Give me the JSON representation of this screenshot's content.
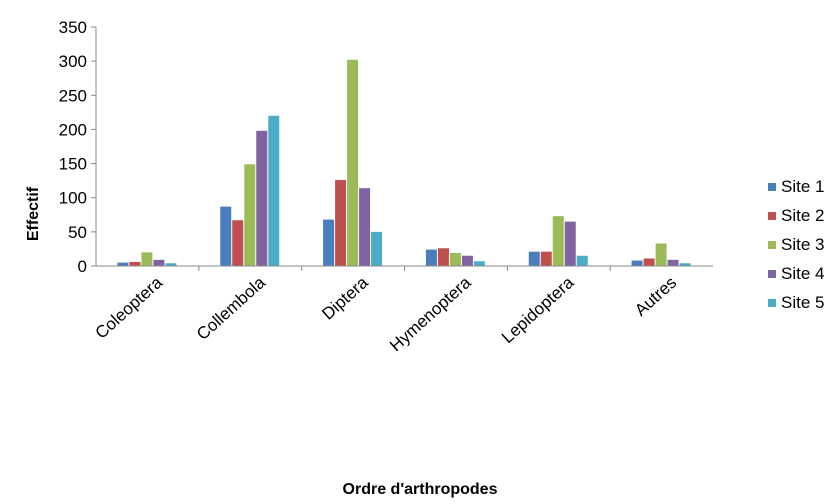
{
  "chart_data": {
    "type": "bar",
    "xlabel": "Ordre d'arthropodes",
    "ylabel": "Effectif",
    "ylim": [
      0,
      350
    ],
    "yticks": [
      0,
      50,
      100,
      150,
      200,
      250,
      300,
      350
    ],
    "categories": [
      "Coleoptera",
      "Collembola",
      "Diptera",
      "Hymenoptera",
      "Lepidoptera",
      "Autres"
    ],
    "series": [
      {
        "name": "Site 1",
        "color": "#4a7ebb",
        "values": [
          5,
          87,
          68,
          24,
          21,
          8
        ]
      },
      {
        "name": "Site 2",
        "color": "#c0504d",
        "values": [
          6,
          67,
          126,
          26,
          21,
          11
        ]
      },
      {
        "name": "Site 3",
        "color": "#9bbb59",
        "values": [
          20,
          149,
          302,
          19,
          73,
          33
        ]
      },
      {
        "name": "Site 4",
        "color": "#8064a2",
        "values": [
          9,
          198,
          114,
          15,
          65,
          9
        ]
      },
      {
        "name": "Site 5",
        "color": "#4bacc6",
        "values": [
          4,
          220,
          50,
          7,
          15,
          4
        ]
      }
    ],
    "legend_position": "right",
    "grid": false
  }
}
